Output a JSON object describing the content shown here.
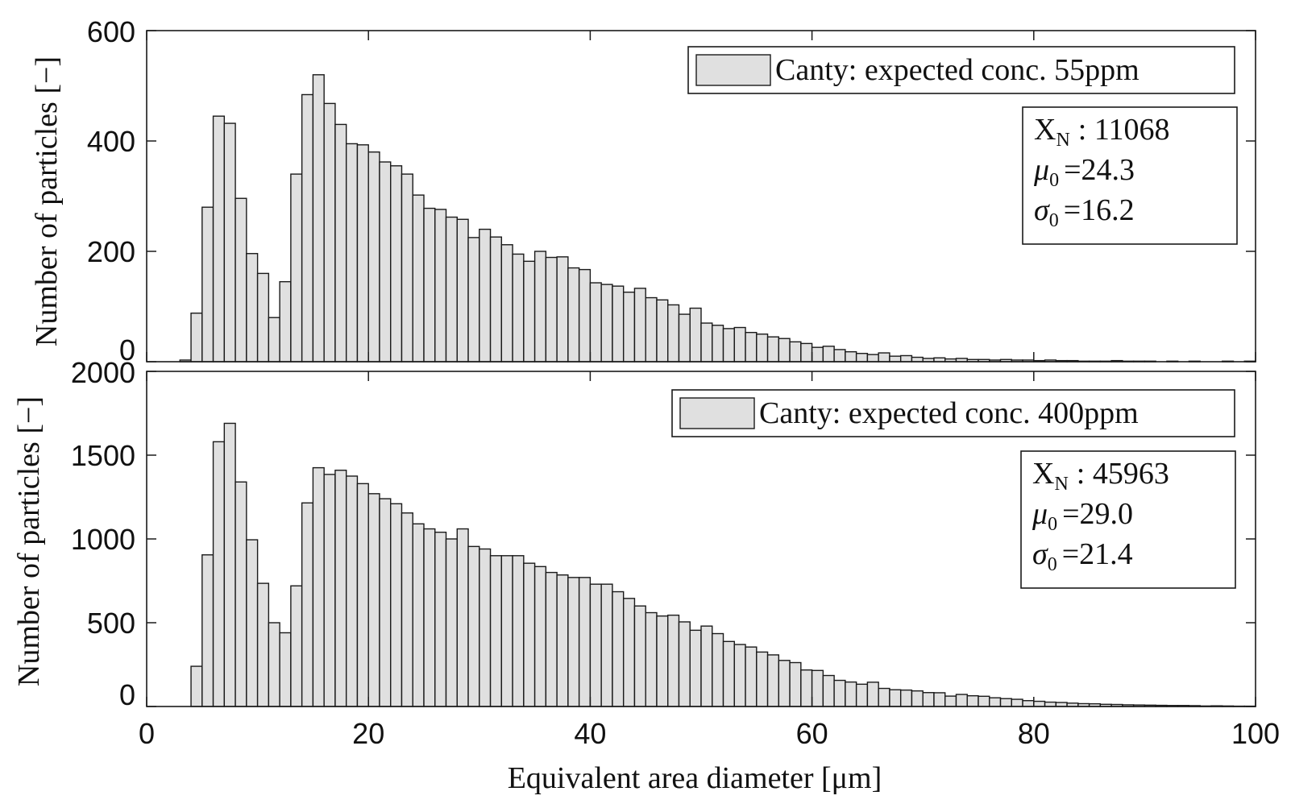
{
  "chart_data": [
    {
      "type": "bar",
      "legend": "Canty: expected conc. 55ppm",
      "ylim": [
        0,
        600
      ],
      "yticks": [
        0,
        200,
        400,
        600
      ],
      "xlim": [
        0,
        100
      ],
      "bin_width": 1,
      "bin_start": 0,
      "bar_color": "#e0e0e0",
      "stats": {
        "xn_label": "X",
        "xn_sub": "N",
        "xn_value": ": 11068",
        "mu_label": "μ",
        "mu_value": "=24.3",
        "sigma_label": "σ",
        "sigma_value": "=16.2",
        "sub0": "0"
      },
      "values": [
        0,
        0,
        0,
        3,
        88,
        280,
        445,
        432,
        296,
        196,
        160,
        80,
        145,
        340,
        484,
        520,
        468,
        430,
        395,
        393,
        380,
        362,
        355,
        340,
        302,
        278,
        276,
        262,
        258,
        225,
        240,
        226,
        212,
        195,
        182,
        200,
        189,
        190,
        170,
        167,
        143,
        140,
        137,
        126,
        133,
        116,
        112,
        103,
        86,
        97,
        70,
        66,
        60,
        62,
        53,
        50,
        45,
        42,
        36,
        33,
        26,
        28,
        22,
        18,
        15,
        13,
        16,
        10,
        11,
        8,
        6,
        7,
        5,
        6,
        4,
        4,
        3,
        4,
        3,
        3,
        2,
        3,
        2,
        2,
        1,
        1,
        1,
        2,
        1,
        1,
        1,
        0,
        1,
        0,
        1,
        0,
        0,
        1,
        0,
        1
      ]
    },
    {
      "type": "bar",
      "legend": "Canty: expected conc. 400ppm",
      "ylim": [
        0,
        2000
      ],
      "yticks": [
        0,
        500,
        1000,
        1500,
        2000
      ],
      "xlim": [
        0,
        100
      ],
      "bin_width": 1,
      "bin_start": 0,
      "bar_color": "#e0e0e0",
      "stats": {
        "xn_label": "X",
        "xn_sub": "N",
        "xn_value": ": 45963",
        "mu_label": "μ",
        "mu_value": "=29.0",
        "sigma_label": "σ",
        "sigma_value": "=21.4",
        "sub0": "0"
      },
      "values": [
        0,
        0,
        0,
        0,
        240,
        905,
        1580,
        1690,
        1340,
        995,
        735,
        500,
        440,
        720,
        1215,
        1425,
        1385,
        1410,
        1375,
        1330,
        1270,
        1240,
        1210,
        1155,
        1090,
        1060,
        1040,
        1000,
        1060,
        955,
        940,
        900,
        900,
        900,
        855,
        835,
        800,
        785,
        770,
        770,
        730,
        730,
        685,
        645,
        600,
        560,
        540,
        545,
        505,
        455,
        480,
        435,
        388,
        370,
        355,
        325,
        308,
        275,
        262,
        218,
        215,
        185,
        156,
        146,
        133,
        145,
        108,
        100,
        98,
        93,
        83,
        82,
        62,
        72,
        64,
        61,
        52,
        47,
        43,
        35,
        31,
        26,
        24,
        20,
        17,
        16,
        13,
        12,
        10,
        9,
        8,
        7,
        6,
        6,
        5,
        3,
        4,
        3,
        2,
        2
      ]
    }
  ],
  "shared_axis": {
    "xticks": [
      0,
      20,
      40,
      60,
      80,
      100
    ],
    "xlabel": "Equivalent area diameter [μm]",
    "ylabel": "Number of particles [−]"
  }
}
